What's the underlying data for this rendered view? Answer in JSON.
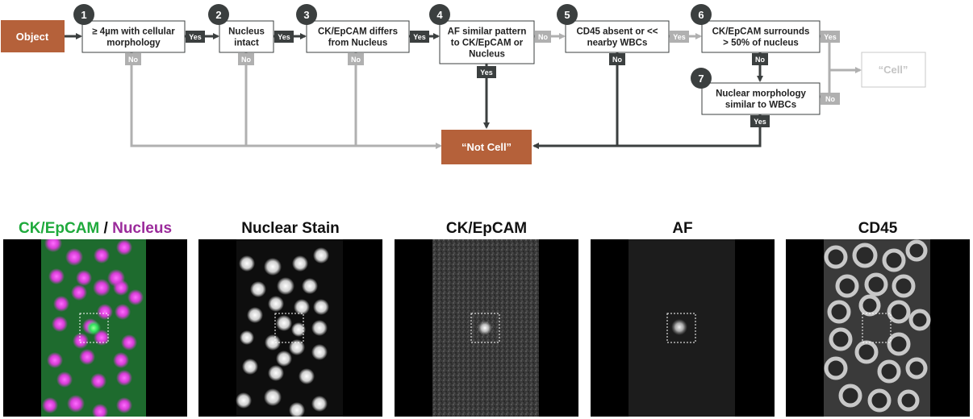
{
  "flowchart": {
    "start": "Object",
    "steps": [
      {
        "number": "1",
        "text": [
          "≥ 4µm with cellular",
          "morphology"
        ],
        "pass": "Yes",
        "fail": "No"
      },
      {
        "number": "2",
        "text": [
          "Nucleus",
          "intact"
        ],
        "pass": "Yes",
        "fail": "No"
      },
      {
        "number": "3",
        "text": [
          "CK/EpCAM differs",
          "from Nucleus"
        ],
        "pass": "Yes",
        "fail": "No"
      },
      {
        "number": "4",
        "text": [
          "AF similar pattern",
          "to CK/EpCAM or",
          "Nucleus"
        ],
        "pass": "No",
        "fail": "Yes"
      },
      {
        "number": "5",
        "text": [
          "CD45 absent or <<",
          "nearby WBCs"
        ],
        "pass": "Yes",
        "fail": "No"
      },
      {
        "number": "6",
        "text": [
          "CK/EpCAM surrounds",
          "> 50% of nucleus"
        ],
        "pass": "Yes",
        "fail": "No"
      },
      {
        "number": "7",
        "text": [
          "Nuclear morphology",
          "similar to WBCs"
        ],
        "pass": "No",
        "fail": "Yes"
      }
    ],
    "not_cell": "“Not Cell”",
    "cell": "“Cell”",
    "colors": {
      "accent": "#b5613a",
      "dark": "#3b3f3f",
      "light": "#b0b0b0",
      "box_border": "#3b3f3f"
    }
  },
  "panels": {
    "merged_title": {
      "ck": "CK/EpCAM",
      "sep": " / ",
      "nucleus": "Nucleus"
    },
    "titles": [
      "Nuclear Stain",
      "CK/EpCAM",
      "AF",
      "CD45"
    ],
    "colors": {
      "ck": "#1faa3c",
      "nucleus": "#9b2b9b"
    }
  }
}
